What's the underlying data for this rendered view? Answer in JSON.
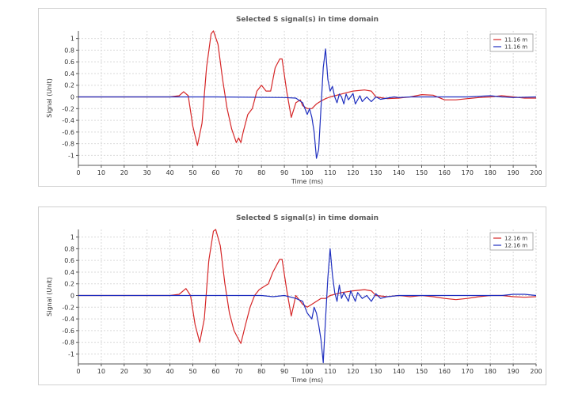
{
  "chart_data": [
    {
      "type": "line",
      "title": "Selected S signal(s) in time domain",
      "xlabel": "Time (ms)",
      "ylabel": "Signal (Unit)",
      "xlim": [
        0,
        200
      ],
      "ylim": [
        -1.17,
        1.13
      ],
      "xticks": [
        0,
        10,
        20,
        30,
        40,
        50,
        60,
        70,
        80,
        90,
        100,
        110,
        120,
        130,
        140,
        150,
        160,
        170,
        180,
        190,
        200
      ],
      "yticks": [
        -1,
        -0.8,
        -0.6,
        -0.4,
        -0.2,
        0,
        0.2,
        0.4,
        0.6,
        0.8,
        1
      ],
      "grid": true,
      "legend_position": "top-right",
      "series": [
        {
          "name": "11.16 m",
          "color": "#d62728",
          "points": [
            [
              0,
              0
            ],
            [
              40,
              0
            ],
            [
              44,
              0.02
            ],
            [
              46,
              0.09
            ],
            [
              48,
              0.02
            ],
            [
              50,
              -0.5
            ],
            [
              52,
              -0.83
            ],
            [
              54,
              -0.45
            ],
            [
              56,
              0.5
            ],
            [
              58,
              1.08
            ],
            [
              59,
              1.13
            ],
            [
              61,
              0.9
            ],
            [
              63,
              0.3
            ],
            [
              65,
              -0.2
            ],
            [
              67,
              -0.55
            ],
            [
              69,
              -0.78
            ],
            [
              70,
              -0.7
            ],
            [
              71,
              -0.78
            ],
            [
              72,
              -0.6
            ],
            [
              74,
              -0.3
            ],
            [
              76,
              -0.2
            ],
            [
              78,
              0.1
            ],
            [
              80,
              0.2
            ],
            [
              82,
              0.1
            ],
            [
              84,
              0.1
            ],
            [
              86,
              0.5
            ],
            [
              88,
              0.65
            ],
            [
              89,
              0.65
            ],
            [
              91,
              0.1
            ],
            [
              93,
              -0.35
            ],
            [
              95,
              -0.1
            ],
            [
              97,
              -0.05
            ],
            [
              98,
              -0.15
            ],
            [
              100,
              -0.2
            ],
            [
              102,
              -0.2
            ],
            [
              104,
              -0.12
            ],
            [
              106,
              -0.07
            ],
            [
              108,
              -0.03
            ],
            [
              110,
              0.0
            ],
            [
              115,
              0.05
            ],
            [
              120,
              0.1
            ],
            [
              125,
              0.12
            ],
            [
              128,
              0.1
            ],
            [
              130,
              0.0
            ],
            [
              135,
              -0.03
            ],
            [
              140,
              -0.02
            ],
            [
              145,
              0.0
            ],
            [
              150,
              0.04
            ],
            [
              155,
              0.03
            ],
            [
              160,
              -0.05
            ],
            [
              165,
              -0.05
            ],
            [
              170,
              -0.03
            ],
            [
              175,
              -0.01
            ],
            [
              180,
              0.0
            ],
            [
              185,
              0.02
            ],
            [
              190,
              0.0
            ],
            [
              195,
              -0.02
            ],
            [
              200,
              -0.02
            ]
          ]
        },
        {
          "name": "11.16 m",
          "color": "#1f2fbf",
          "points": [
            [
              0,
              0
            ],
            [
              30,
              0
            ],
            [
              60,
              0
            ],
            [
              90,
              -0.01
            ],
            [
              95,
              -0.02
            ],
            [
              98,
              -0.1
            ],
            [
              100,
              -0.3
            ],
            [
              101,
              -0.2
            ],
            [
              102,
              -0.35
            ],
            [
              103,
              -0.6
            ],
            [
              104,
              -1.05
            ],
            [
              105,
              -0.9
            ],
            [
              106,
              -0.2
            ],
            [
              107,
              0.5
            ],
            [
              108,
              0.82
            ],
            [
              109,
              0.3
            ],
            [
              110,
              0.1
            ],
            [
              111,
              0.18
            ],
            [
              112,
              0.0
            ],
            [
              113,
              -0.1
            ],
            [
              114,
              0.05
            ],
            [
              115,
              0.0
            ],
            [
              116,
              -0.12
            ],
            [
              117,
              0.05
            ],
            [
              118,
              -0.05
            ],
            [
              120,
              0.06
            ],
            [
              121,
              -0.12
            ],
            [
              123,
              0.02
            ],
            [
              124,
              -0.08
            ],
            [
              126,
              0.0
            ],
            [
              128,
              -0.08
            ],
            [
              130,
              0.0
            ],
            [
              132,
              -0.04
            ],
            [
              135,
              -0.02
            ],
            [
              138,
              0.0
            ],
            [
              140,
              -0.01
            ],
            [
              145,
              0.0
            ],
            [
              150,
              0.0
            ],
            [
              160,
              0.0
            ],
            [
              170,
              0.0
            ],
            [
              180,
              0.02
            ],
            [
              185,
              0.0
            ],
            [
              190,
              -0.01
            ],
            [
              200,
              0.0
            ]
          ]
        }
      ]
    },
    {
      "type": "line",
      "title": "Selected S signal(s) in time domain",
      "xlabel": "Time (ms)",
      "ylabel": "Signal (Unit)",
      "xlim": [
        0,
        200
      ],
      "ylim": [
        -1.17,
        1.13
      ],
      "xticks": [
        0,
        10,
        20,
        30,
        40,
        50,
        60,
        70,
        80,
        90,
        100,
        110,
        120,
        130,
        140,
        150,
        160,
        170,
        180,
        190,
        200
      ],
      "yticks": [
        -1,
        -0.8,
        -0.6,
        -0.4,
        -0.2,
        0,
        0.2,
        0.4,
        0.6,
        0.8,
        1
      ],
      "grid": true,
      "legend_position": "top-right",
      "series": [
        {
          "name": "12.16 m",
          "color": "#d62728",
          "points": [
            [
              0,
              0
            ],
            [
              40,
              0
            ],
            [
              44,
              0.02
            ],
            [
              47,
              0.12
            ],
            [
              49,
              0.0
            ],
            [
              51,
              -0.5
            ],
            [
              53,
              -0.8
            ],
            [
              55,
              -0.4
            ],
            [
              57,
              0.6
            ],
            [
              59,
              1.1
            ],
            [
              60,
              1.13
            ],
            [
              62,
              0.85
            ],
            [
              64,
              0.2
            ],
            [
              66,
              -0.3
            ],
            [
              68,
              -0.6
            ],
            [
              70,
              -0.75
            ],
            [
              71,
              -0.82
            ],
            [
              73,
              -0.5
            ],
            [
              75,
              -0.2
            ],
            [
              77,
              0.0
            ],
            [
              79,
              0.1
            ],
            [
              81,
              0.15
            ],
            [
              83,
              0.2
            ],
            [
              85,
              0.4
            ],
            [
              88,
              0.62
            ],
            [
              89,
              0.62
            ],
            [
              91,
              0.1
            ],
            [
              93,
              -0.35
            ],
            [
              95,
              0.0
            ],
            [
              96,
              -0.05
            ],
            [
              98,
              -0.15
            ],
            [
              100,
              -0.2
            ],
            [
              102,
              -0.15
            ],
            [
              104,
              -0.1
            ],
            [
              106,
              -0.05
            ],
            [
              108,
              -0.05
            ],
            [
              110,
              0.0
            ],
            [
              115,
              0.05
            ],
            [
              120,
              0.08
            ],
            [
              125,
              0.1
            ],
            [
              128,
              0.08
            ],
            [
              130,
              0.0
            ],
            [
              135,
              -0.02
            ],
            [
              140,
              0.0
            ],
            [
              145,
              -0.02
            ],
            [
              150,
              0.0
            ],
            [
              155,
              -0.02
            ],
            [
              160,
              -0.05
            ],
            [
              165,
              -0.07
            ],
            [
              170,
              -0.05
            ],
            [
              175,
              -0.02
            ],
            [
              180,
              0.0
            ],
            [
              185,
              0.0
            ],
            [
              190,
              -0.02
            ],
            [
              195,
              -0.03
            ],
            [
              200,
              -0.02
            ]
          ]
        },
        {
          "name": "12.16 m",
          "color": "#1f2fbf",
          "points": [
            [
              0,
              0
            ],
            [
              30,
              0
            ],
            [
              60,
              0
            ],
            [
              80,
              0.0
            ],
            [
              85,
              -0.02
            ],
            [
              90,
              0.0
            ],
            [
              95,
              -0.05
            ],
            [
              98,
              -0.1
            ],
            [
              100,
              -0.3
            ],
            [
              102,
              -0.4
            ],
            [
              103,
              -0.2
            ],
            [
              104,
              -0.3
            ],
            [
              105,
              -0.5
            ],
            [
              106,
              -0.75
            ],
            [
              107,
              -1.15
            ],
            [
              108,
              -0.4
            ],
            [
              109,
              0.3
            ],
            [
              110,
              0.8
            ],
            [
              111,
              0.35
            ],
            [
              112,
              0.05
            ],
            [
              113,
              -0.1
            ],
            [
              114,
              0.18
            ],
            [
              115,
              -0.05
            ],
            [
              116,
              0.05
            ],
            [
              118,
              -0.1
            ],
            [
              119,
              0.08
            ],
            [
              121,
              -0.1
            ],
            [
              122,
              0.05
            ],
            [
              124,
              -0.05
            ],
            [
              126,
              0.0
            ],
            [
              128,
              -0.1
            ],
            [
              130,
              0.03
            ],
            [
              132,
              -0.05
            ],
            [
              135,
              -0.02
            ],
            [
              140,
              0.0
            ],
            [
              145,
              0.0
            ],
            [
              150,
              0.0
            ],
            [
              160,
              0.0
            ],
            [
              170,
              0.0
            ],
            [
              180,
              0.0
            ],
            [
              185,
              0.0
            ],
            [
              190,
              0.02
            ],
            [
              195,
              0.02
            ],
            [
              200,
              0.0
            ]
          ]
        }
      ]
    }
  ]
}
